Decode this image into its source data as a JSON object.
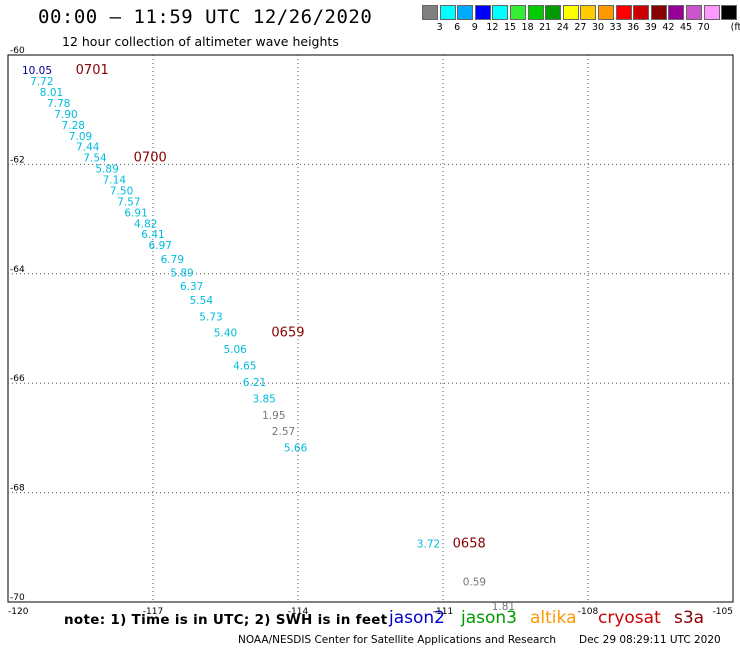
{
  "header": {
    "title": "00:00 – 11:59 UTC 12/26/2020",
    "subtitle": "12 hour collection of altimeter wave heights"
  },
  "legend": {
    "unit": "(ft)",
    "colors": [
      "#808080",
      "#00ffff",
      "#00aaff",
      "#0000ff",
      "#00ffff",
      "#33ee33",
      "#00cc00",
      "#009900",
      "#ffff00",
      "#ffcc00",
      "#ff9900",
      "#ff0000",
      "#cc0000",
      "#880000",
      "#990099",
      "#cc55cc",
      "#ff99ff",
      "#000000"
    ],
    "labels": [
      "3",
      "6",
      "9",
      "12",
      "15",
      "18",
      "21",
      "24",
      "27",
      "30",
      "33",
      "36",
      "39",
      "42",
      "45",
      "70"
    ]
  },
  "footer": {
    "note": "note:  1) Time is in UTC;  2) SWH is in feet",
    "credit": "NOAA/NESDIS Center for Satellite Applications and Research",
    "timestamp": "Dec 29 08:29:11 UTC 2020"
  },
  "satellites": [
    {
      "name": "jason2",
      "color": "#0000cc"
    },
    {
      "name": "jason3",
      "color": "#009900"
    },
    {
      "name": "altika",
      "color": "#ff9900"
    },
    {
      "name": "cryosat",
      "color": "#cc0000"
    },
    {
      "name": "s3a",
      "color": "#880000"
    }
  ],
  "chart_data": {
    "type": "scatter",
    "x_ticks": [
      "-120",
      "-117",
      "-114",
      "-111",
      "-108",
      "-105"
    ],
    "y_ticks": [
      "-60",
      "-62",
      "-64",
      "-66",
      "-68",
      "-70"
    ],
    "xlim": [
      -120,
      -105
    ],
    "ylim": [
      -70,
      -60
    ],
    "grid": true,
    "points": [
      {
        "lon": -119.4,
        "lat": -60.35,
        "v": "10.05",
        "c": "#000099"
      },
      {
        "lon": -119.3,
        "lat": -60.55,
        "v": "7.72",
        "c": "#00bbdd"
      },
      {
        "lon": -119.1,
        "lat": -60.75,
        "v": "8.01",
        "c": "#00bbdd"
      },
      {
        "lon": -118.95,
        "lat": -60.95,
        "v": "7.78",
        "c": "#00bbdd"
      },
      {
        "lon": -118.8,
        "lat": -61.15,
        "v": "7.90",
        "c": "#00bbdd"
      },
      {
        "lon": -118.65,
        "lat": -61.35,
        "v": "7.28",
        "c": "#00bbdd"
      },
      {
        "lon": -118.5,
        "lat": -61.55,
        "v": "7.09",
        "c": "#00bbdd"
      },
      {
        "lon": -118.35,
        "lat": -61.75,
        "v": "7.44",
        "c": "#00bbdd"
      },
      {
        "lon": -118.2,
        "lat": -61.95,
        "v": "7.54",
        "c": "#00bbdd"
      },
      {
        "lon": -117.95,
        "lat": -62.15,
        "v": "5.89",
        "c": "#00bbdd"
      },
      {
        "lon": -117.8,
        "lat": -62.35,
        "v": "7.14",
        "c": "#00bbdd"
      },
      {
        "lon": -117.65,
        "lat": -62.55,
        "v": "7.50",
        "c": "#00bbdd"
      },
      {
        "lon": -117.5,
        "lat": -62.75,
        "v": "7.57",
        "c": "#00bbdd"
      },
      {
        "lon": -117.35,
        "lat": -62.95,
        "v": "6.91",
        "c": "#00bbdd"
      },
      {
        "lon": -117.15,
        "lat": -63.15,
        "v": "4.82",
        "c": "#00bbdd"
      },
      {
        "lon": -117.0,
        "lat": -63.35,
        "v": "6.41",
        "c": "#00bbdd"
      },
      {
        "lon": -116.85,
        "lat": -63.55,
        "v": "6.97",
        "c": "#00bbdd"
      },
      {
        "lon": -116.6,
        "lat": -63.8,
        "v": "6.79",
        "c": "#00bbdd"
      },
      {
        "lon": -116.4,
        "lat": -64.05,
        "v": "5.89",
        "c": "#00bbdd"
      },
      {
        "lon": -116.2,
        "lat": -64.3,
        "v": "6.37",
        "c": "#00bbdd"
      },
      {
        "lon": -116.0,
        "lat": -64.55,
        "v": "5.54",
        "c": "#00bbdd"
      },
      {
        "lon": -115.8,
        "lat": -64.85,
        "v": "5.73",
        "c": "#00bbdd"
      },
      {
        "lon": -115.5,
        "lat": -65.15,
        "v": "5.40",
        "c": "#00bbdd"
      },
      {
        "lon": -115.3,
        "lat": -65.45,
        "v": "5.06",
        "c": "#00bbdd"
      },
      {
        "lon": -115.1,
        "lat": -65.75,
        "v": "4.65",
        "c": "#00bbdd"
      },
      {
        "lon": -114.9,
        "lat": -66.05,
        "v": "6.21",
        "c": "#00bbdd"
      },
      {
        "lon": -114.7,
        "lat": -66.35,
        "v": "3.85",
        "c": "#00bbdd"
      },
      {
        "lon": -114.5,
        "lat": -66.65,
        "v": "1.95",
        "c": "#777777"
      },
      {
        "lon": -114.3,
        "lat": -66.95,
        "v": "2.57",
        "c": "#777777"
      },
      {
        "lon": -114.05,
        "lat": -67.25,
        "v": "5.66",
        "c": "#00bbdd"
      },
      {
        "lon": -111.3,
        "lat": -69.0,
        "v": "3.72",
        "c": "#00bbdd"
      },
      {
        "lon": -110.35,
        "lat": -69.7,
        "v": "0.59",
        "c": "#777777"
      },
      {
        "lon": -109.75,
        "lat": -70.15,
        "v": "1.81",
        "c": "#777777"
      }
    ],
    "time_labels": [
      {
        "lon": -118.6,
        "lat": -60.35,
        "t": "0701"
      },
      {
        "lon": -117.4,
        "lat": -61.95,
        "t": "0700"
      },
      {
        "lon": -114.55,
        "lat": -65.15,
        "t": "0659"
      },
      {
        "lon": -110.8,
        "lat": -69.0,
        "t": "0658"
      }
    ]
  }
}
